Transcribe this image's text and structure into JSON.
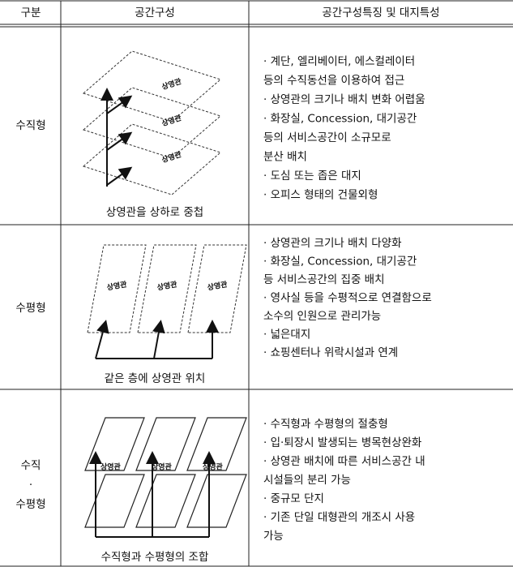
{
  "table": {
    "header": [
      "구분",
      "공간구성",
      "공간구성특징 및 대지특성"
    ],
    "rows": [
      {
        "type": [
          "수직형"
        ],
        "diagram_labels": [
          "상영관",
          "상영관",
          "상영관"
        ],
        "caption": "상영관을 상하로 중첩",
        "features": [
          "· 계단, 엘리베이터, 에스컬레이터",
          "등의 수직동선을 이용하여 접근",
          "· 상영관의 크기나 배치 변화 어렵움",
          "· 화장실, Concession, 대기공간",
          "등의 서비스공간이 소규모로",
          "분산 배치",
          "· 도심 또는 좁은 대지",
          "· 오피스 형태의 건물외형"
        ]
      },
      {
        "type": [
          "수평형"
        ],
        "diagram_labels": [
          "상영관",
          "상영관",
          "상영관"
        ],
        "caption": "같은 층에 상영관 위치",
        "features": [
          "· 상영관의 크기나 배치 다양화",
          "· 화장실, Concession, 대기공간",
          "등 서비스공간의 집중 배치",
          "· 영사실 등을 수평적으로 연결함으로",
          "소수의 인원으로 관리가능",
          "· 넓은대지",
          "· 쇼핑센터나 위락시설과 연계"
        ]
      },
      {
        "type": [
          "수직",
          "·",
          "수평형"
        ],
        "diagram_labels": [
          "상영관",
          "상영관",
          "상영관"
        ],
        "caption": "수직형과 수평형의 조합",
        "features": [
          "· 수직형과 수평형의 절충형",
          "· 입·퇴장시 발생되는 병목현상완화",
          "· 상영관 배치에 따른 서비스공간 내",
          "시설들의 분리 가능",
          "· 중규모 단지",
          "· 기존 단일 대형관의 개조시 사용",
          "가능"
        ]
      }
    ]
  }
}
